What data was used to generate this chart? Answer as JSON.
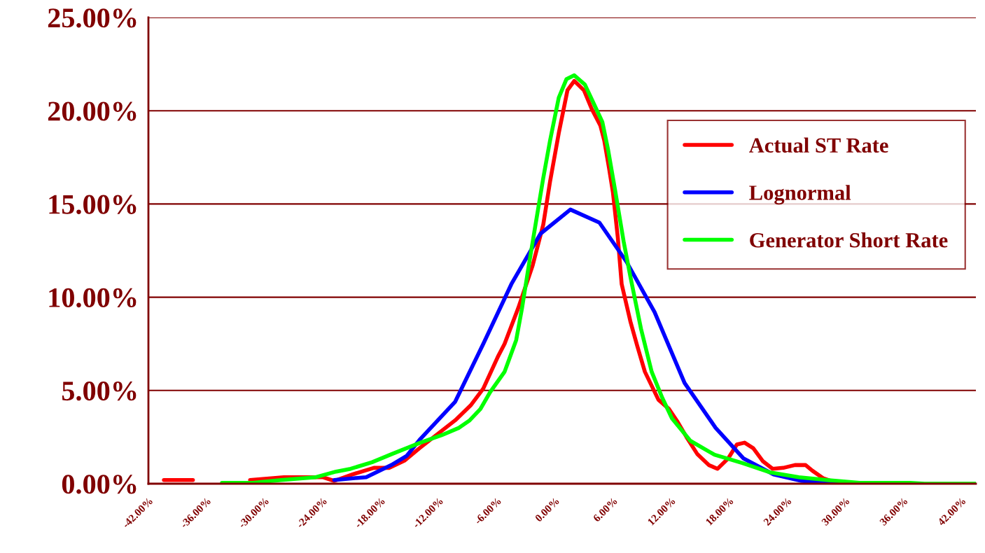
{
  "chart_data": {
    "type": "line",
    "xlim": [
      -42,
      43.5
    ],
    "ylim": [
      0,
      25
    ],
    "xticks": [
      {
        "value": -42,
        "label": "-42.00%"
      },
      {
        "value": -36,
        "label": "-36.00%"
      },
      {
        "value": -30,
        "label": "-30.00%"
      },
      {
        "value": -24,
        "label": "-24.00%"
      },
      {
        "value": -18,
        "label": "-18.00%"
      },
      {
        "value": -12,
        "label": "-12.00%"
      },
      {
        "value": -6,
        "label": "-6.00%"
      },
      {
        "value": 0,
        "label": "0.00%"
      },
      {
        "value": 6,
        "label": "6.00%"
      },
      {
        "value": 12,
        "label": "12.00%"
      },
      {
        "value": 18,
        "label": "18.00%"
      },
      {
        "value": 24,
        "label": "24.00%"
      },
      {
        "value": 30,
        "label": "30.00%"
      },
      {
        "value": 36,
        "label": "36.00%"
      },
      {
        "value": 42,
        "label": "42.00%"
      }
    ],
    "yticks": [
      {
        "value": 0,
        "label": "0.00%"
      },
      {
        "value": 5,
        "label": "5.00%"
      },
      {
        "value": 10,
        "label": "10.00%"
      },
      {
        "value": 15,
        "label": "15.00%"
      },
      {
        "value": 20,
        "label": "20.00%"
      },
      {
        "value": 25,
        "label": "25.00%"
      }
    ],
    "grid": "y",
    "legend": "right",
    "marker": "none",
    "line_style": "solid",
    "series": [
      {
        "name": "Actual ST Rate",
        "color": "#ff0000",
        "x": [
          -40.4,
          -37.4,
          -34,
          -31.5,
          -28,
          -24,
          -22.8,
          -20.9,
          -18.7,
          -17.1,
          -15.5,
          -14.0,
          -10.3,
          -8.7,
          -7.4,
          -5.9,
          -5.2,
          -3.8,
          -2.3,
          -1.2,
          -0.5,
          0.4,
          1.3,
          2.0,
          3.0,
          3.8,
          4.7,
          5.1,
          5.6,
          6.0,
          6.5,
          6.9,
          7.8,
          8.5,
          9.3,
          10.7,
          11.8,
          12.7,
          13.6,
          14.7,
          15.9,
          16.8,
          17.9,
          18.8,
          19.6,
          20.5,
          21.5,
          22.5,
          23.6,
          24.8,
          25.9,
          26.6,
          27.7,
          28.8,
          29.9
        ],
        "values": [
          0.2,
          0.2,
          null,
          0.2,
          0.35,
          0.35,
          0.15,
          0.5,
          0.85,
          0.85,
          1.25,
          1.9,
          3.4,
          4.2,
          5.1,
          6.8,
          7.5,
          9.4,
          11.7,
          13.9,
          16.2,
          18.8,
          21.1,
          21.6,
          21.1,
          20.1,
          19.2,
          18.4,
          16.9,
          15.6,
          13.2,
          10.7,
          8.7,
          7.4,
          6.0,
          4.5,
          4.0,
          3.3,
          2.5,
          1.6,
          1.0,
          0.8,
          1.35,
          2.1,
          2.2,
          1.9,
          1.2,
          0.8,
          0.85,
          1.0,
          1.0,
          0.7,
          0.3,
          0.1,
          0
        ]
      },
      {
        "name": "Lognormal",
        "color": "#0000ff",
        "x": [
          -22.8,
          -19.5,
          -16.9,
          -15.3,
          -13.9,
          -10.3,
          -7.4,
          -4.5,
          -1.5,
          1.6,
          4.6,
          7.4,
          10.3,
          13.4,
          16.6,
          19.5,
          22.6,
          25.5,
          28.4,
          31.3
        ],
        "values": [
          0.2,
          0.35,
          1.0,
          1.5,
          2.4,
          4.4,
          7.5,
          10.7,
          13.4,
          14.7,
          14.0,
          11.9,
          9.2,
          5.4,
          3.0,
          1.35,
          0.5,
          0.15,
          0.05,
          0
        ]
      },
      {
        "name": "Generator Short Rate",
        "color": "#00ff00",
        "x": [
          -34.4,
          -31.2,
          -28.3,
          -24.7,
          -22.6,
          -21.1,
          -18.9,
          -16.8,
          -13.9,
          -11.7,
          -9.9,
          -8.8,
          -7.7,
          -6.7,
          -5.2,
          -4.0,
          -3.4,
          -2.7,
          -2.0,
          -1.2,
          -0.5,
          0.4,
          1.2,
          2.0,
          3.1,
          4.0,
          4.9,
          5.5,
          6.2,
          7.1,
          7.8,
          8.9,
          10.0,
          11.1,
          12.1,
          14.0,
          16.5,
          19.4,
          22.3,
          25.2,
          28.1,
          31.5,
          36.7,
          38.2,
          43.5
        ],
        "values": [
          0.05,
          0.05,
          0.2,
          0.35,
          0.65,
          0.8,
          1.15,
          1.6,
          2.2,
          2.6,
          3.0,
          3.4,
          4.0,
          4.9,
          6.0,
          7.7,
          9.4,
          11.7,
          13.9,
          16.4,
          18.4,
          20.7,
          21.7,
          21.9,
          21.4,
          20.4,
          19.4,
          17.9,
          15.8,
          13.0,
          11.1,
          8.3,
          6.0,
          4.6,
          3.5,
          2.3,
          1.55,
          1.1,
          0.6,
          0.35,
          0.2,
          0.05,
          0.05,
          0,
          0
        ]
      }
    ]
  }
}
